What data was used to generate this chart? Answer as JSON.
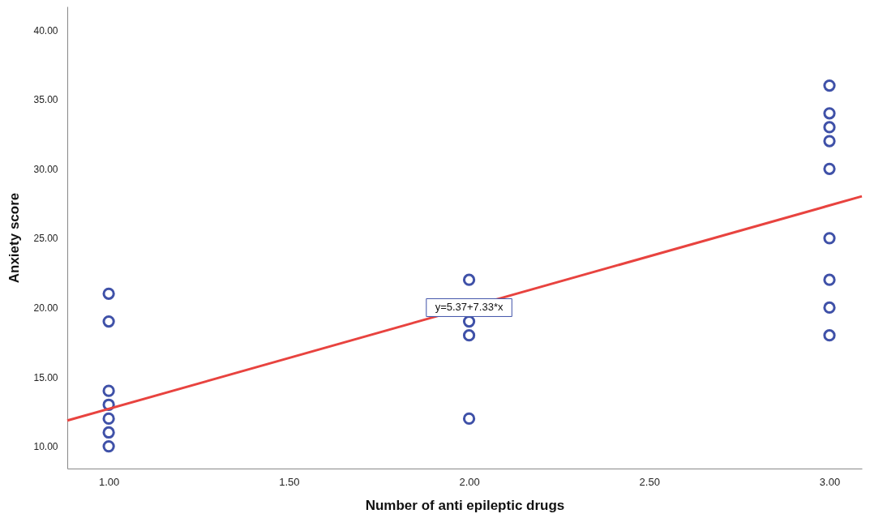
{
  "chart_data": {
    "type": "scatter",
    "xlabel": "Number of anti epileptic drugs",
    "ylabel": "Anxiety score",
    "series": [
      {
        "color": "#3f51a8",
        "marker": "circle",
        "x": [
          1,
          1,
          1,
          1,
          1,
          1,
          1,
          2,
          2,
          2,
          2,
          3,
          3,
          3,
          3,
          3,
          3,
          3,
          3,
          3
        ],
        "values": [
          21,
          19,
          14,
          13,
          12,
          11,
          10,
          22,
          19,
          18,
          12,
          36,
          34,
          33,
          32,
          30,
          25,
          22,
          20,
          18
        ]
      },
      {
        "type": "line",
        "color": "#e8433f",
        "line_style": "solid",
        "x": [
          0.885,
          3.09
        ],
        "values": [
          11.86,
          28.02
        ]
      }
    ],
    "annotations": [
      {
        "text": "y=5.37+7.33*x",
        "x": 2.0,
        "y": 20.0
      }
    ],
    "xlim": [
      0.885,
      3.09
    ],
    "ylim": [
      8.4,
      41.7
    ],
    "xticks": [
      {
        "value": 1,
        "label": "1.00"
      },
      {
        "value": 1.5,
        "label": "1.50"
      },
      {
        "value": 2,
        "label": "2.00"
      },
      {
        "value": 2.5,
        "label": "2.50"
      },
      {
        "value": 3,
        "label": "3.00"
      }
    ],
    "yticks": [
      {
        "value": 10,
        "label": "10.00"
      },
      {
        "value": 15,
        "label": "15.00"
      },
      {
        "value": 20,
        "label": "20.00"
      },
      {
        "value": 25,
        "label": "25.00"
      },
      {
        "value": 30,
        "label": "30.00"
      },
      {
        "value": 35,
        "label": "35.00"
      },
      {
        "value": 40,
        "label": "40.00"
      }
    ],
    "grid": false
  }
}
